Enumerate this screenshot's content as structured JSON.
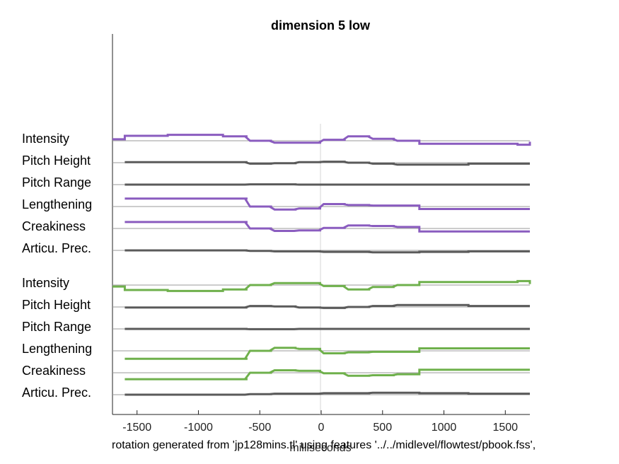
{
  "chart_data": {
    "type": "line",
    "title": "dimension  5 low",
    "xlabel": "milliseconds",
    "xlim": [
      -1700,
      1700
    ],
    "xticks": [
      -1500,
      -1000,
      -500,
      0,
      500,
      1000,
      1500
    ],
    "xtick_labels": [
      "-1500",
      "-1000",
      "-500",
      "0",
      "500",
      "1000",
      "1500"
    ],
    "caption": "rotation generated from 'jp128mins.tl'  using features '../../midlevel/flowtest/pbook.fss',",
    "colors": {
      "purple": "#8a5cbf",
      "green": "#6fb04c",
      "gray": "#5a5a5a",
      "baseline": "#9a9a9a"
    },
    "breakpoints": [
      -1700,
      -1600,
      -1250,
      -800,
      -600,
      -400,
      -200,
      0,
      200,
      400,
      600,
      800,
      1200,
      1600,
      1700
    ],
    "groups": [
      {
        "color": "purple",
        "rows": [
          {
            "label": "Intensity",
            "values": [
              0.3,
              1.0,
              1.2,
              0.9,
              0.0,
              -0.4,
              -0.4,
              0.2,
              0.9,
              0.4,
              0.0,
              -0.6,
              -0.6,
              -0.8,
              -0.2
            ]
          },
          {
            "label": "Pitch Height",
            "values": [
              null,
              0.1,
              0.1,
              0.1,
              -0.2,
              -0.1,
              0.1,
              0.2,
              0.0,
              -0.2,
              -0.4,
              -0.4,
              -0.2,
              -0.2,
              null
            ]
          },
          {
            "label": "Pitch Range",
            "values": [
              null,
              0.0,
              0.0,
              0.0,
              0.05,
              0.05,
              0.0,
              0.0,
              0.0,
              0.0,
              0.0,
              0.0,
              0.0,
              0.0,
              null
            ]
          },
          {
            "label": "Lengthening",
            "values": [
              null,
              1.6,
              1.6,
              1.6,
              0.0,
              -0.6,
              -0.4,
              0.5,
              0.3,
              0.2,
              0.2,
              -0.5,
              -0.5,
              -0.5,
              null
            ]
          },
          {
            "label": "Creakiness",
            "values": [
              null,
              1.3,
              1.3,
              1.3,
              0.0,
              -0.5,
              -0.4,
              0.1,
              0.6,
              0.5,
              0.3,
              -0.6,
              -0.6,
              -0.6,
              null
            ]
          },
          {
            "label": "Articu. Prec.",
            "values": [
              null,
              0.0,
              0.0,
              0.0,
              -0.1,
              -0.2,
              -0.2,
              -0.3,
              -0.3,
              -0.4,
              -0.4,
              -0.3,
              -0.2,
              -0.2,
              null
            ]
          }
        ]
      },
      {
        "color": "green",
        "rows": [
          {
            "label": "Intensity",
            "values": [
              -0.3,
              -1.0,
              -1.2,
              -0.9,
              0.0,
              0.4,
              0.4,
              -0.2,
              -0.9,
              -0.4,
              0.0,
              0.6,
              0.6,
              0.8,
              0.2
            ]
          },
          {
            "label": "Pitch Height",
            "values": [
              null,
              -0.1,
              -0.1,
              -0.1,
              0.2,
              0.1,
              -0.1,
              -0.2,
              0.0,
              0.2,
              0.4,
              0.4,
              0.2,
              0.2,
              null
            ]
          },
          {
            "label": "Pitch Range",
            "values": [
              null,
              0.0,
              0.0,
              0.0,
              -0.05,
              -0.05,
              0.0,
              0.0,
              0.0,
              0.0,
              0.0,
              0.0,
              0.0,
              0.0,
              null
            ]
          },
          {
            "label": "Lengthening",
            "values": [
              null,
              -1.6,
              -1.6,
              -1.6,
              0.0,
              0.6,
              0.4,
              -0.5,
              -0.3,
              -0.2,
              -0.2,
              0.5,
              0.5,
              0.5,
              null
            ]
          },
          {
            "label": "Creakiness",
            "values": [
              null,
              -1.3,
              -1.3,
              -1.3,
              0.0,
              0.5,
              0.4,
              -0.1,
              -0.6,
              -0.5,
              -0.3,
              0.6,
              0.6,
              0.6,
              null
            ]
          },
          {
            "label": "Articu. Prec.",
            "values": [
              null,
              0.0,
              0.0,
              0.0,
              0.1,
              0.2,
              0.2,
              0.3,
              0.3,
              0.4,
              0.4,
              0.3,
              0.2,
              0.2,
              null
            ]
          }
        ]
      }
    ]
  }
}
